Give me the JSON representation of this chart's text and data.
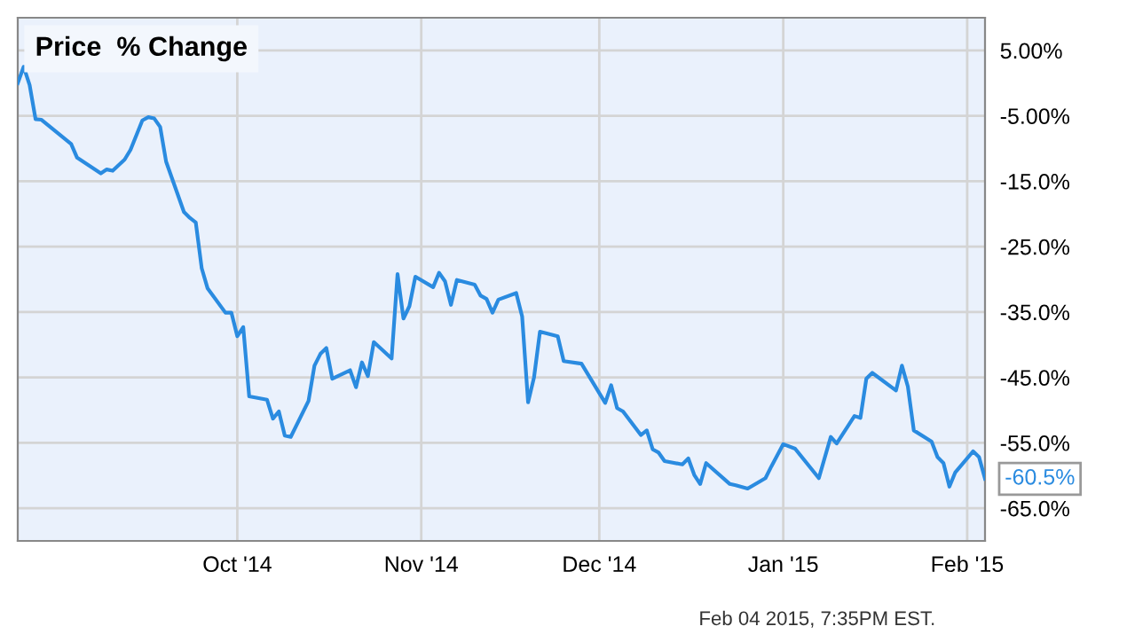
{
  "chart_data": {
    "type": "line",
    "title": "Price  % Change",
    "color": "#2a8be0",
    "x": [
      "2014-08-25",
      "2014-08-26",
      "2014-08-27",
      "2014-08-28",
      "2014-08-29",
      "2014-09-03",
      "2014-09-04",
      "2014-09-08",
      "2014-09-09",
      "2014-09-10",
      "2014-09-12",
      "2014-09-13",
      "2014-09-15",
      "2014-09-16",
      "2014-09-17",
      "2014-09-18",
      "2014-09-19",
      "2014-09-22",
      "2014-09-23",
      "2014-09-24",
      "2014-09-25",
      "2014-09-26",
      "2014-09-29",
      "2014-09-30",
      "2014-10-01",
      "2014-10-02",
      "2014-10-03",
      "2014-10-06",
      "2014-10-07",
      "2014-10-08",
      "2014-10-09",
      "2014-10-10",
      "2014-10-13",
      "2014-10-14",
      "2014-10-15",
      "2014-10-16",
      "2014-10-17",
      "2014-10-20",
      "2014-10-21",
      "2014-10-22",
      "2014-10-23",
      "2014-10-24",
      "2014-10-27",
      "2014-10-28",
      "2014-10-29",
      "2014-10-30",
      "2014-10-31",
      "2014-11-03",
      "2014-11-04",
      "2014-11-05",
      "2014-11-06",
      "2014-11-07",
      "2014-11-10",
      "2014-11-11",
      "2014-11-12",
      "2014-11-13",
      "2014-11-14",
      "2014-11-17",
      "2014-11-18",
      "2014-11-19",
      "2014-11-20",
      "2014-11-21",
      "2014-11-24",
      "2014-11-25",
      "2014-11-28",
      "2014-12-02",
      "2014-12-03",
      "2014-12-04",
      "2014-12-05",
      "2014-12-08",
      "2014-12-09",
      "2014-12-10",
      "2014-12-11",
      "2014-12-12",
      "2014-12-15",
      "2014-12-16",
      "2014-12-17",
      "2014-12-18",
      "2014-12-19",
      "2014-12-23",
      "2014-12-24",
      "2014-12-26",
      "2014-12-29",
      "2014-12-30",
      "2015-01-01",
      "2015-01-03",
      "2015-01-07",
      "2015-01-09",
      "2015-01-10",
      "2015-01-13",
      "2015-01-14",
      "2015-01-15",
      "2015-01-16",
      "2015-01-20",
      "2015-01-21",
      "2015-01-22",
      "2015-01-23",
      "2015-01-26",
      "2015-01-27",
      "2015-01-28",
      "2015-01-29",
      "2015-01-30",
      "2015-02-02",
      "2015-02-03",
      "2015-02-04"
    ],
    "values": [
      0,
      2.5,
      -0.3,
      -5.5,
      -5.6,
      -9.3,
      -11.4,
      -13.8,
      -13.2,
      -13.4,
      -11.7,
      -10.2,
      -5.7,
      -5.2,
      -5.4,
      -6.7,
      -12.0,
      -19.7,
      -20.6,
      -21.3,
      -28.3,
      -31.4,
      -35.1,
      -35.1,
      -38.7,
      -37.3,
      -47.9,
      -48.4,
      -51.3,
      -50.2,
      -53.9,
      -54.1,
      -48.6,
      -43.2,
      -41.4,
      -40.5,
      -45.2,
      -43.9,
      -46.5,
      -42.7,
      -44.8,
      -39.6,
      -42.1,
      -29.2,
      -36.0,
      -34.1,
      -29.6,
      -31.2,
      -29.0,
      -30.3,
      -33.9,
      -30.1,
      -30.8,
      -32.5,
      -33.0,
      -35.1,
      -33.1,
      -32.1,
      -35.7,
      -48.8,
      -45.0,
      -38.0,
      -38.7,
      -42.5,
      -42.9,
      -48.9,
      -46.2,
      -49.7,
      -50.2,
      -53.8,
      -53.1,
      -56.0,
      -56.5,
      -57.8,
      -58.3,
      -57.4,
      -59.9,
      -61.3,
      -58.1,
      -61.3,
      -61.5,
      -62.0,
      -60.4,
      -58.6,
      -55.2,
      -55.9,
      -60.4,
      -54.1,
      -55.1,
      -50.9,
      -51.2,
      -45.2,
      -44.3,
      -47.0,
      -43.2,
      -46.4,
      -53.1,
      -54.8,
      -57.2,
      -58.1,
      -61.7,
      -59.5,
      -56.3,
      -57.2,
      -60.5
    ],
    "xlim": [
      "2014-08-25",
      "2015-02-04"
    ],
    "xticks": [
      {
        "value": "2014-10-01",
        "label": "Oct '14"
      },
      {
        "value": "2014-11-01",
        "label": "Nov '14"
      },
      {
        "value": "2014-12-01",
        "label": "Dec '14"
      },
      {
        "value": "2015-01-01",
        "label": "Jan '15"
      },
      {
        "value": "2015-02-01",
        "label": "Feb '15"
      }
    ],
    "ylim": [
      -70,
      10
    ],
    "yticks": [
      {
        "value": 5,
        "label": "5.00%"
      },
      {
        "value": -5,
        "label": "-5.00%"
      },
      {
        "value": -15,
        "label": "-15.0%"
      },
      {
        "value": -25,
        "label": "-25.0%"
      },
      {
        "value": -35,
        "label": "-35.0%"
      },
      {
        "value": -45,
        "label": "-45.0%"
      },
      {
        "value": -55,
        "label": "-55.0%"
      },
      {
        "value": -65,
        "label": "-65.0%"
      }
    ],
    "grid": true,
    "marker": "none",
    "line_style": "solid",
    "annotations": [
      {
        "text": "-60.5%",
        "x": "2015-02-04",
        "y": -60.5
      },
      "Feb 04 2015, 7:35PM EST."
    ]
  }
}
